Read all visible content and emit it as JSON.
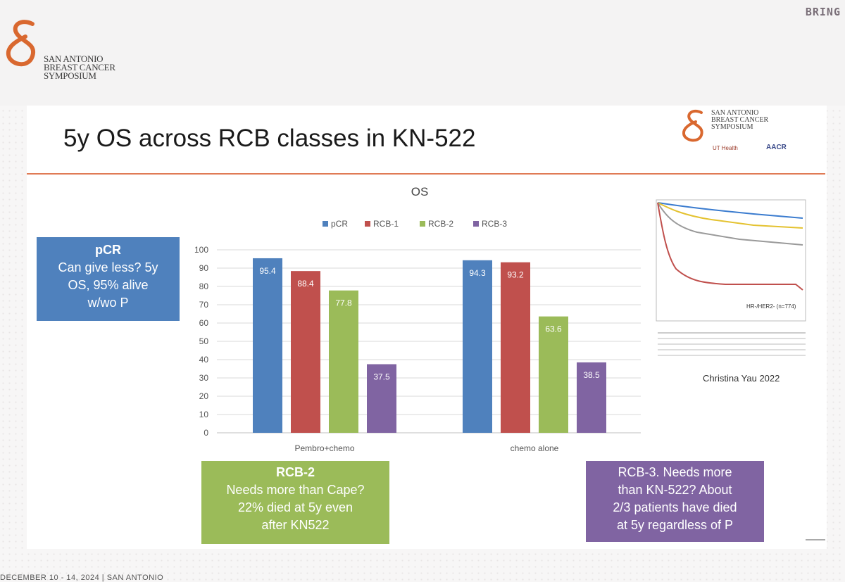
{
  "header": {
    "org_line1": "SAN ANTONIO",
    "org_line2": "BREAST CANCER",
    "org_line3": "SYMPOSIUM",
    "corner_tag": "BRING"
  },
  "slide": {
    "title": "5y OS across RCB classes in KN-522",
    "logo_right": {
      "line1": "SAN ANTONIO",
      "line2": "BREAST CANCER",
      "line3": "SYMPOSIUM",
      "ut": "UT Health",
      "aacr": "AACR"
    }
  },
  "chart_data": {
    "type": "bar",
    "title": "OS",
    "categories": [
      "Pembro+chemo",
      "chemo alone"
    ],
    "series": [
      {
        "name": "pCR",
        "color": "#4f81bd",
        "values": [
          95.4,
          94.3
        ]
      },
      {
        "name": "RCB-1",
        "color": "#c0504d",
        "values": [
          88.4,
          93.2
        ]
      },
      {
        "name": "RCB-2",
        "color": "#9bbb59",
        "values": [
          77.8,
          63.6
        ]
      },
      {
        "name": "RCB-3",
        "color": "#8064a2",
        "values": [
          37.5,
          38.5
        ]
      }
    ],
    "data_labels": [
      [
        "95.4",
        "88.4",
        "77.8",
        "37.5"
      ],
      [
        "94.3",
        "93.2",
        "63.6",
        "38.5"
      ]
    ],
    "ylim": [
      0,
      100
    ],
    "yticks": [
      "0",
      "10",
      "20",
      "30",
      "40",
      "50",
      "60",
      "70",
      "80",
      "90",
      "100"
    ],
    "legend_position": "top-center",
    "grid": true
  },
  "callouts": {
    "pcr": {
      "head": "pCR",
      "lines": [
        "Can give less? 5y",
        "OS, 95% alive",
        "w/wo P"
      ]
    },
    "rcb2": {
      "head": "RCB-2",
      "lines": [
        "Needs more than Cape?",
        "22% died at 5y even",
        "after KN522"
      ]
    },
    "rcb3": {
      "lines": [
        "RCB-3. Needs more",
        "than KN-522? About",
        "2/3 patients have died",
        "at 5y regardless of P"
      ]
    }
  },
  "km_inset": {
    "annotation": "HR-/HER2- (n=774)",
    "citation": "Christina Yau 2022"
  },
  "footer": {
    "text": "DECEMBER 10 - 14, 2024 | SAN ANTONIO"
  }
}
